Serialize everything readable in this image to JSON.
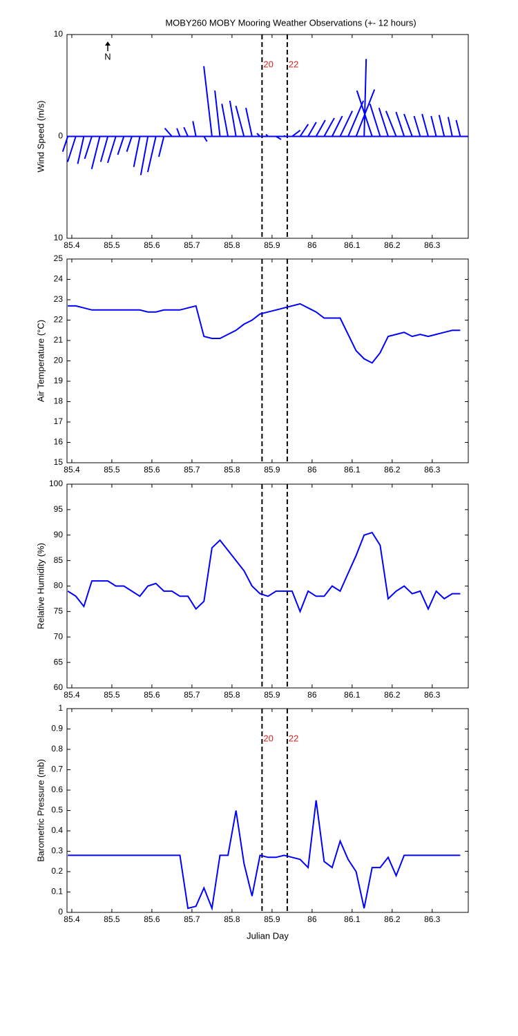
{
  "chart_data": [
    {
      "type": "stick",
      "title": "MOBY260 MOBY Mooring Weather Observations (+- 12 hours)",
      "ylabel": "Wind Speed (m/s)",
      "annotation": "N",
      "color": "#0000ff",
      "x": [
        85.39,
        85.41,
        85.43,
        85.45,
        85.47,
        85.49,
        85.51,
        85.53,
        85.55,
        85.57,
        85.59,
        85.61,
        85.63,
        85.65,
        85.67,
        85.69,
        85.71,
        85.73,
        85.75,
        85.77,
        85.79,
        85.81,
        85.83,
        85.85,
        85.87,
        85.89,
        85.91,
        85.93,
        85.95,
        85.97,
        85.99,
        86.01,
        86.03,
        86.05,
        86.07,
        86.09,
        86.11,
        86.13,
        86.15,
        86.17,
        86.19,
        86.21,
        86.23,
        86.25,
        86.27,
        86.29,
        86.31,
        86.33,
        86.35,
        86.37
      ],
      "u": [
        -0.5,
        -0.8,
        -0.6,
        -0.7,
        -0.8,
        -0.7,
        -0.8,
        -0.6,
        -0.5,
        -0.6,
        -0.7,
        -0.8,
        -0.5,
        -0.7,
        -0.3,
        -0.4,
        -0.3,
        0.3,
        -0.8,
        -0.5,
        -0.6,
        -0.6,
        -0.8,
        -0.6,
        -0.3,
        -0.2,
        0.5,
        0.1,
        0.8,
        0.8,
        0.8,
        0.9,
        1.0,
        1.0,
        1.2,
        1.5,
        1.8,
        0.2,
        -1.5,
        -1.0,
        -0.9,
        -1.0,
        -0.8,
        -0.8,
        -0.6,
        -0.6,
        -0.5,
        -0.5,
        -0.4,
        -0.4
      ],
      "v": [
        -1.5,
        -2.5,
        -2.7,
        -2.2,
        -3.2,
        -2.5,
        -2.6,
        -1.8,
        -1.5,
        -3.0,
        -3.8,
        -3.5,
        -2.0,
        0.8,
        0.8,
        0.9,
        1.5,
        -0.5,
        6.9,
        4.5,
        3.2,
        3.5,
        3.0,
        2.8,
        0.3,
        0.2,
        -0.3,
        0.1,
        0.6,
        1.2,
        1.4,
        1.6,
        1.8,
        2.0,
        2.5,
        3.5,
        4.6,
        7.6,
        4.5,
        3.2,
        2.8,
        2.5,
        2.4,
        2.2,
        2.0,
        2.2,
        2.0,
        2.1,
        1.9,
        1.6
      ],
      "xlim": [
        85.388,
        86.39
      ],
      "ylim": [
        -10,
        10
      ],
      "xticks": [
        85.4,
        85.5,
        85.6,
        85.7,
        85.8,
        85.9,
        86,
        86.1,
        86.2,
        86.3
      ],
      "yticks": [
        {
          "value": -10,
          "label": "10"
        },
        0,
        10
      ],
      "vlines": [
        85.875,
        85.938
      ],
      "vline_labels": [
        "20",
        "22"
      ]
    },
    {
      "type": "line",
      "ylabel": "Air Temperature (°C)",
      "color": "#0000ff",
      "x": [
        85.39,
        85.41,
        85.43,
        85.45,
        85.47,
        85.49,
        85.51,
        85.53,
        85.55,
        85.57,
        85.59,
        85.61,
        85.63,
        85.65,
        85.67,
        85.69,
        85.71,
        85.73,
        85.75,
        85.77,
        85.79,
        85.81,
        85.83,
        85.85,
        85.87,
        85.89,
        85.91,
        85.93,
        85.95,
        85.97,
        85.99,
        86.01,
        86.03,
        86.05,
        86.07,
        86.09,
        86.11,
        86.13,
        86.15,
        86.17,
        86.19,
        86.21,
        86.23,
        86.25,
        86.27,
        86.29,
        86.31,
        86.33,
        86.35,
        86.37
      ],
      "values": [
        22.7,
        22.7,
        22.6,
        22.5,
        22.5,
        22.5,
        22.5,
        22.5,
        22.5,
        22.5,
        22.4,
        22.4,
        22.5,
        22.5,
        22.5,
        22.6,
        22.7,
        21.2,
        21.1,
        21.1,
        21.3,
        21.5,
        21.8,
        22.0,
        22.3,
        22.4,
        22.5,
        22.6,
        22.7,
        22.8,
        22.6,
        22.4,
        22.1,
        22.1,
        22.1,
        21.3,
        20.5,
        20.1,
        19.9,
        20.4,
        21.2,
        21.3,
        21.4,
        21.2,
        21.3,
        21.2,
        21.3,
        21.4,
        21.5,
        21.5
      ],
      "xlim": [
        85.388,
        86.39
      ],
      "ylim": [
        15,
        25
      ],
      "xticks": [
        85.4,
        85.5,
        85.6,
        85.7,
        85.8,
        85.9,
        86,
        86.1,
        86.2,
        86.3
      ],
      "yticks": [
        15,
        16,
        17,
        18,
        19,
        20,
        21,
        22,
        23,
        24,
        25
      ],
      "vlines": [
        85.875,
        85.938
      ]
    },
    {
      "type": "line",
      "ylabel": "Relative Humidity (%)",
      "color": "#0000ff",
      "x": [
        85.39,
        85.41,
        85.43,
        85.45,
        85.47,
        85.49,
        85.51,
        85.53,
        85.55,
        85.57,
        85.59,
        85.61,
        85.63,
        85.65,
        85.67,
        85.69,
        85.71,
        85.73,
        85.75,
        85.77,
        85.79,
        85.81,
        85.83,
        85.85,
        85.87,
        85.89,
        85.91,
        85.93,
        85.95,
        85.97,
        85.99,
        86.01,
        86.03,
        86.05,
        86.07,
        86.09,
        86.11,
        86.13,
        86.15,
        86.17,
        86.19,
        86.21,
        86.23,
        86.25,
        86.27,
        86.29,
        86.31,
        86.33,
        86.35,
        86.37
      ],
      "values": [
        79,
        78,
        76,
        81,
        81,
        81,
        80,
        80,
        79,
        78,
        80,
        80.5,
        79,
        79,
        78,
        78,
        75.5,
        77,
        87.5,
        89,
        87,
        85,
        83,
        80,
        78.5,
        78,
        79,
        79,
        79,
        75,
        79,
        78,
        78,
        80,
        79,
        82.5,
        86,
        90,
        90.5,
        88,
        77.5,
        79,
        80,
        78.5,
        79,
        75.5,
        79,
        77.5,
        78.5,
        78.5
      ],
      "xlim": [
        85.388,
        86.39
      ],
      "ylim": [
        60,
        100
      ],
      "xticks": [
        85.4,
        85.5,
        85.6,
        85.7,
        85.8,
        85.9,
        86,
        86.1,
        86.2,
        86.3
      ],
      "yticks": [
        60,
        65,
        70,
        75,
        80,
        85,
        90,
        95,
        100
      ],
      "vlines": [
        85.875,
        85.938
      ]
    },
    {
      "type": "line",
      "ylabel": "Barometric Pressure (mb)",
      "xlabel": "Julian Day",
      "color": "#0000ff",
      "x": [
        85.39,
        85.41,
        85.43,
        85.45,
        85.47,
        85.49,
        85.51,
        85.53,
        85.55,
        85.57,
        85.59,
        85.61,
        85.63,
        85.65,
        85.67,
        85.69,
        85.71,
        85.73,
        85.75,
        85.77,
        85.79,
        85.81,
        85.83,
        85.85,
        85.87,
        85.89,
        85.91,
        85.93,
        85.95,
        85.97,
        85.99,
        86.01,
        86.03,
        86.05,
        86.07,
        86.09,
        86.11,
        86.13,
        86.15,
        86.17,
        86.19,
        86.21,
        86.23,
        86.25,
        86.27,
        86.29,
        86.31,
        86.33,
        86.35,
        86.37
      ],
      "values": [
        0.28,
        0.28,
        0.28,
        0.28,
        0.28,
        0.28,
        0.28,
        0.28,
        0.28,
        0.28,
        0.28,
        0.28,
        0.28,
        0.28,
        0.28,
        0.02,
        0.03,
        0.12,
        0.02,
        0.28,
        0.28,
        0.5,
        0.24,
        0.08,
        0.28,
        0.27,
        0.27,
        0.28,
        0.27,
        0.26,
        0.22,
        0.55,
        0.25,
        0.22,
        0.35,
        0.26,
        0.2,
        0.02,
        0.22,
        0.22,
        0.27,
        0.18,
        0.28,
        0.28,
        0.28,
        0.28,
        0.28,
        0.28,
        0.28,
        0.28
      ],
      "xlim": [
        85.388,
        86.39
      ],
      "ylim": [
        0,
        1
      ],
      "xticks": [
        85.4,
        85.5,
        85.6,
        85.7,
        85.8,
        85.9,
        86,
        86.1,
        86.2,
        86.3
      ],
      "yticks": [
        0,
        0.1,
        0.2,
        0.3,
        0.4,
        0.5,
        0.6,
        0.7,
        0.8,
        0.9,
        1
      ],
      "vlines": [
        85.875,
        85.938
      ],
      "vline_labels": [
        "20",
        "22"
      ]
    }
  ]
}
